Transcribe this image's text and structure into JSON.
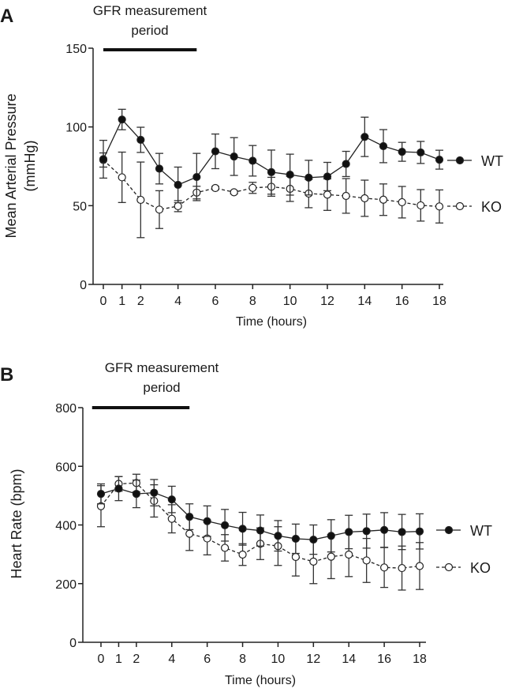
{
  "chart_data": [
    {
      "type": "line",
      "panel_label": "A",
      "annotation": {
        "line1": "GFR measurement",
        "line2": "period",
        "x_range": [
          0,
          5
        ],
        "y": 150
      },
      "xlabel": "Time (hours)",
      "ylabel_line1": "Mean Arterial Pressure",
      "ylabel_line2": "(mmHg)",
      "xlim": [
        0,
        18
      ],
      "ylim": [
        0,
        150
      ],
      "x_ticks": [
        0,
        1,
        2,
        4,
        6,
        8,
        10,
        12,
        14,
        16,
        18
      ],
      "x_tick_labels": [
        "0",
        "1",
        "2",
        "4",
        "6",
        "8",
        "10",
        "12",
        "14",
        "16",
        "18"
      ],
      "y_ticks": [
        0,
        50,
        100,
        150
      ],
      "y_tick_labels": [
        "0",
        "50",
        "100",
        "150"
      ],
      "grid": false,
      "legend_position": "right",
      "x": [
        0,
        1,
        2,
        3,
        4,
        5,
        6,
        7,
        8,
        9,
        10,
        11,
        12,
        13,
        14,
        15,
        16,
        17,
        18
      ],
      "series": [
        {
          "name": "WT",
          "marker": "filled-circle",
          "line": "solid",
          "values": [
            79.5,
            104.7,
            91.8,
            73.5,
            63.2,
            68.2,
            84.5,
            81.2,
            78.5,
            71.3,
            69.7,
            67.8,
            68.5,
            76.5,
            93.7,
            87.8,
            84.2,
            83.8,
            79.2
          ],
          "errors": [
            12,
            6.5,
            8,
            9.7,
            11.3,
            15,
            11,
            12,
            9.7,
            14,
            13,
            11,
            9,
            8,
            12.5,
            10.5,
            6,
            7,
            6
          ]
        },
        {
          "name": "KO",
          "marker": "open-circle",
          "line": "dashed",
          "values": [
            79,
            68,
            53.7,
            47.5,
            49.7,
            58.3,
            61.2,
            58.5,
            61.3,
            62,
            60.7,
            57.7,
            57,
            56.2,
            54.7,
            53.8,
            52.2,
            50.2,
            49.5
          ],
          "errors": [
            4.5,
            16,
            24,
            12,
            3.5,
            4,
            1,
            1,
            3.5,
            6,
            8,
            9,
            10,
            11,
            11.5,
            10,
            10,
            10,
            10.5
          ]
        }
      ]
    },
    {
      "type": "line",
      "panel_label": "B",
      "annotation": {
        "line1": "GFR measurement",
        "line2": "period",
        "x_range": [
          -0.5,
          5
        ],
        "y": 800
      },
      "xlabel": "Time (hours)",
      "ylabel_line1": "Heart Rate (bpm)",
      "ylabel_line2": "",
      "xlim": [
        0,
        18
      ],
      "ylim": [
        0,
        800
      ],
      "x_ticks": [
        0,
        1,
        2,
        4,
        6,
        8,
        10,
        12,
        14,
        16,
        18
      ],
      "x_tick_labels": [
        "0",
        "1",
        "2",
        "4",
        "6",
        "8",
        "10",
        "12",
        "14",
        "16",
        "18"
      ],
      "y_ticks": [
        0,
        200,
        400,
        600,
        800
      ],
      "y_tick_labels": [
        "0",
        "200",
        "400",
        "600",
        "800"
      ],
      "grid": false,
      "legend_position": "right",
      "x": [
        0,
        1,
        2,
        3,
        4,
        5,
        6,
        7,
        8,
        9,
        10,
        11,
        12,
        13,
        14,
        15,
        16,
        17,
        18
      ],
      "series": [
        {
          "name": "WT",
          "marker": "filled-circle",
          "line": "solid",
          "values": [
            506,
            524,
            506,
            510,
            487,
            428,
            413,
            399,
            387,
            381,
            363,
            353,
            350,
            363,
            376,
            379,
            383,
            376,
            378
          ],
          "errors": [
            34,
            41,
            47,
            45,
            45,
            44,
            52,
            54,
            56,
            53,
            52,
            50,
            50,
            55,
            57,
            58,
            59,
            60,
            60
          ]
        },
        {
          "name": "KO",
          "marker": "open-circle",
          "line": "dashed",
          "values": [
            464,
            540,
            543,
            482,
            421,
            370,
            354,
            322,
            299,
            336,
            328,
            291,
            275,
            292,
            299,
            279,
            255,
            253,
            260
          ],
          "errors": [
            70,
            25,
            30,
            55,
            48,
            57,
            56,
            45,
            37,
            54,
            66,
            65,
            75,
            75,
            75,
            75,
            68,
            75,
            80
          ]
        }
      ]
    }
  ]
}
